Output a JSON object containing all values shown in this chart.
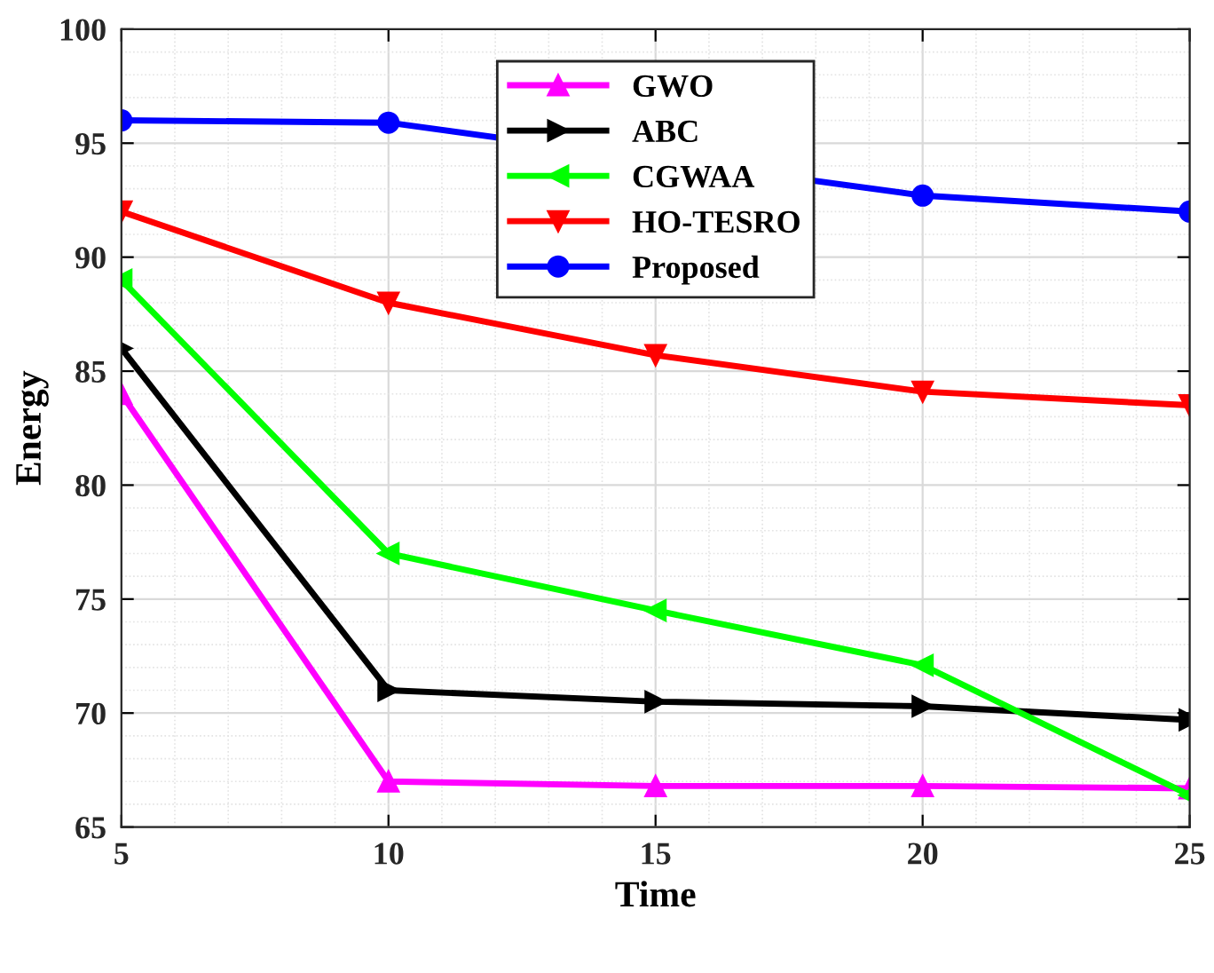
{
  "chart_data": {
    "type": "line",
    "xlabel": "Time",
    "ylabel": "Energy",
    "x": [
      5,
      10,
      15,
      20,
      25
    ],
    "series": [
      {
        "name": "GWO",
        "color": "#ff00ff",
        "marker": "triangle-up",
        "values": [
          84.0,
          67.0,
          66.8,
          66.8,
          66.7
        ]
      },
      {
        "name": "ABC",
        "color": "#000000",
        "marker": "triangle-right",
        "values": [
          86.0,
          71.0,
          70.5,
          70.3,
          69.7
        ]
      },
      {
        "name": "CGWAA",
        "color": "#00ff00",
        "marker": "triangle-left",
        "values": [
          89.0,
          77.0,
          74.5,
          72.1,
          66.4
        ]
      },
      {
        "name": "HO-TESRO",
        "color": "#ff0000",
        "marker": "triangle-down",
        "values": [
          92.0,
          88.0,
          85.7,
          84.1,
          83.5
        ]
      },
      {
        "name": "Proposed",
        "color": "#0000ff",
        "marker": "circle",
        "values": [
          96.0,
          95.9,
          null,
          92.7,
          92.0
        ]
      }
    ],
    "xlim": [
      5,
      25
    ],
    "xticks": [
      5,
      10,
      15,
      20,
      25
    ],
    "ylim": [
      65,
      100
    ],
    "yticks": [
      65,
      70,
      75,
      80,
      85,
      90,
      95,
      100
    ],
    "grid": true,
    "legend": "top",
    "line_style": "solid"
  }
}
